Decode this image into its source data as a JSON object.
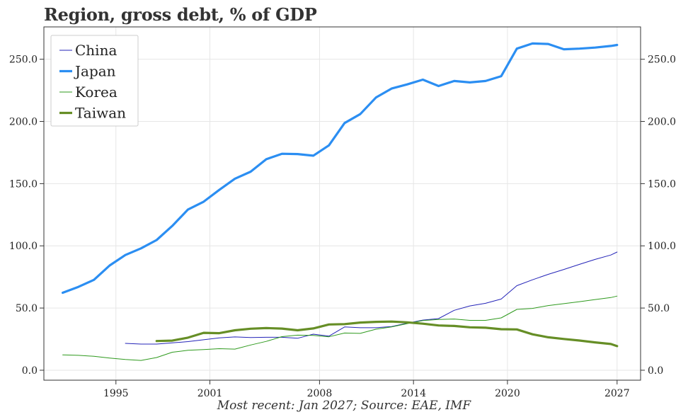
{
  "chart_data": {
    "type": "line",
    "title": "Region, gross debt, % of GDP",
    "caption": "Most recent: Jan 2027; Source: EAE, IMF",
    "xlabel": "",
    "ylabel": "",
    "xlim": [
      1990.4,
      2028.5
    ],
    "ylim": [
      -8,
      276
    ],
    "x_ticks": [
      1995,
      2001,
      2008,
      2014,
      2020,
      2027
    ],
    "y_ticks": [
      0,
      50,
      100,
      150,
      200,
      250
    ],
    "y_tick_labels": [
      "0.0",
      "50.0",
      "100.0",
      "150.0",
      "200.0",
      "250.0"
    ],
    "grid": true,
    "secondary_y_axis": true,
    "legend_position": "top-left",
    "series": [
      {
        "name": "China",
        "color": "#2424b8",
        "line_width": "thin",
        "x": [
          1995.6,
          1996.6,
          1997.6,
          1998.6,
          1999.6,
          2000.6,
          2001.6,
          2002.6,
          2003.6,
          2004.6,
          2005.6,
          2006.6,
          2007.6,
          2008.6,
          2009.6,
          2010.6,
          2011.6,
          2012.6,
          2013.6,
          2014.6,
          2015.6,
          2016.6,
          2017.6,
          2018.6,
          2019.6,
          2020.6,
          2021.6,
          2022.6,
          2023.6,
          2024.6,
          2025.6,
          2026.6,
          2027.0
        ],
        "y": [
          21.6,
          21.0,
          21.0,
          22.0,
          23.0,
          24.5,
          26.0,
          26.8,
          26.3,
          26.5,
          26.5,
          25.7,
          29.0,
          27.4,
          34.8,
          34.2,
          34.2,
          35.1,
          37.8,
          40.3,
          41.5,
          48.2,
          51.7,
          53.8,
          57.2,
          68.0,
          72.7,
          77.1,
          81.0,
          85.1,
          89.1,
          92.6,
          95.0
        ]
      },
      {
        "name": "Japan",
        "color": "#2b8ef2",
        "line_width": "thick",
        "x": [
          1991.6,
          1992.6,
          1993.6,
          1994.6,
          1995.6,
          1996.6,
          1997.6,
          1998.6,
          1999.6,
          2000.6,
          2001.6,
          2002.6,
          2003.6,
          2004.6,
          2005.6,
          2006.6,
          2007.6,
          2008.6,
          2009.6,
          2010.6,
          2011.6,
          2012.6,
          2013.6,
          2014.6,
          2015.6,
          2016.6,
          2017.6,
          2018.6,
          2019.6,
          2020.6,
          2021.6,
          2022.6,
          2023.6,
          2024.6,
          2025.6,
          2026.6,
          2027.0
        ],
        "y": [
          62.3,
          67.0,
          72.7,
          84.2,
          92.6,
          98.0,
          104.7,
          116.0,
          129.2,
          135.5,
          145.0,
          154.0,
          159.6,
          169.6,
          174.0,
          173.8,
          172.5,
          180.8,
          198.7,
          205.9,
          219.2,
          226.4,
          229.8,
          233.6,
          228.5,
          232.5,
          231.4,
          232.5,
          236.4,
          258.5,
          262.7,
          262.3,
          258.0,
          258.5,
          259.4,
          260.7,
          261.5
        ]
      },
      {
        "name": "Korea",
        "color": "#2f9a1e",
        "line_width": "thin",
        "x": [
          1991.6,
          1992.6,
          1993.6,
          1994.6,
          1995.6,
          1996.6,
          1997.6,
          1998.6,
          1999.6,
          2000.6,
          2001.6,
          2002.6,
          2003.6,
          2004.6,
          2005.6,
          2006.6,
          2007.6,
          2008.6,
          2009.6,
          2010.6,
          2011.6,
          2012.6,
          2013.6,
          2014.6,
          2015.6,
          2016.6,
          2017.6,
          2018.6,
          2019.6,
          2020.6,
          2021.6,
          2022.6,
          2023.6,
          2024.6,
          2025.6,
          2026.6,
          2027.0
        ],
        "y": [
          12.4,
          12.0,
          11.2,
          9.8,
          8.7,
          7.9,
          10.2,
          14.5,
          16.0,
          16.6,
          17.3,
          17.0,
          20.3,
          23.2,
          27.0,
          28.2,
          28.0,
          26.9,
          29.9,
          29.6,
          33.0,
          34.8,
          37.5,
          40.0,
          40.8,
          41.2,
          40.1,
          40.1,
          42.1,
          48.9,
          49.7,
          52.0,
          53.5,
          55.1,
          56.8,
          58.4,
          59.6
        ]
      },
      {
        "name": "Taiwan",
        "color": "#668e26",
        "line_width": "thick",
        "x": [
          1997.6,
          1998.6,
          1999.6,
          2000.6,
          2001.6,
          2002.6,
          2003.6,
          2004.6,
          2005.6,
          2006.6,
          2007.6,
          2008.6,
          2009.6,
          2010.6,
          2011.6,
          2012.6,
          2013.6,
          2014.6,
          2015.6,
          2016.6,
          2017.6,
          2018.6,
          2019.6,
          2020.6,
          2021.6,
          2022.6,
          2023.6,
          2024.6,
          2025.6,
          2026.6,
          2027.0
        ],
        "y": [
          23.5,
          23.8,
          26.2,
          30.1,
          29.8,
          32.1,
          33.4,
          33.9,
          33.5,
          32.1,
          33.6,
          36.8,
          37.1,
          38.3,
          38.9,
          39.1,
          38.5,
          37.4,
          36.0,
          35.6,
          34.5,
          34.2,
          33.0,
          32.8,
          28.9,
          26.5,
          25.1,
          23.9,
          22.4,
          21.1,
          19.4
        ]
      }
    ]
  }
}
